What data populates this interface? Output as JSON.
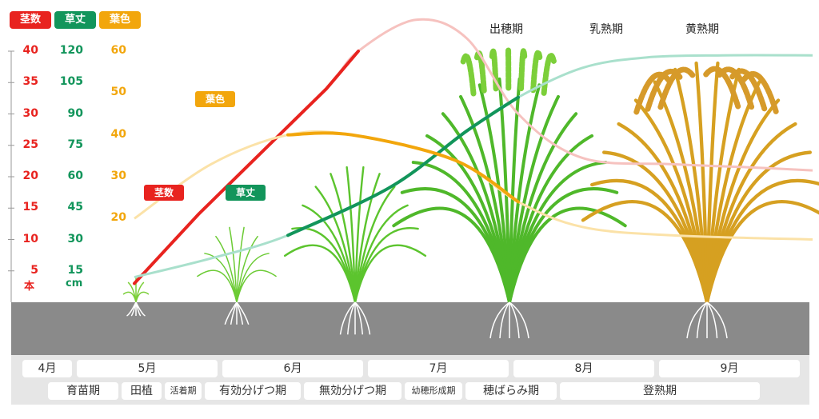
{
  "legend": {
    "tillers": {
      "label": "茎数",
      "color": "#e8231f"
    },
    "height": {
      "label": "草丈",
      "color": "#12955b"
    },
    "leaf_color": {
      "label": "葉色",
      "color": "#f2a60c"
    }
  },
  "stages": {
    "heading": "出穂期",
    "milk": "乳熟期",
    "yellow": "黄熟期"
  },
  "axes": {
    "tillers": {
      "ticks": [
        "5",
        "10",
        "15",
        "20",
        "25",
        "30",
        "35",
        "40"
      ],
      "unit": "本"
    },
    "height": {
      "ticks": [
        "15",
        "30",
        "45",
        "60",
        "75",
        "90",
        "105",
        "120"
      ],
      "unit": "cm"
    },
    "leaf_color": {
      "ticks": [
        "20",
        "30",
        "40",
        "50",
        "60"
      ]
    }
  },
  "callouts": {
    "leaf_color": "葉色",
    "tillers": "茎数",
    "height": "草丈"
  },
  "timeline": {
    "months": [
      "4月",
      "5月",
      "6月",
      "7月",
      "8月",
      "9月"
    ],
    "phases": [
      "育苗期",
      "田植",
      "活着期",
      "有効分げつ期",
      "無効分げつ期",
      "幼穂形成期",
      "穂ばらみ期",
      "登熟期"
    ]
  },
  "chart_data": {
    "type": "line",
    "series": [
      {
        "name": "茎数",
        "unit": "本",
        "color": "#e8231f",
        "points": [
          [
            0,
            3
          ],
          [
            0.5,
            14
          ],
          [
            1,
            24
          ],
          [
            1.5,
            34
          ],
          [
            1.75,
            40
          ],
          [
            2.2,
            45
          ],
          [
            2.6,
            42
          ],
          [
            3.0,
            30
          ],
          [
            3.5,
            23
          ],
          [
            4.2,
            22
          ],
          [
            4.8,
            21.5
          ],
          [
            5.3,
            21
          ]
        ]
      },
      {
        "name": "草丈",
        "unit": "cm",
        "color": "#12955b",
        "points": [
          [
            0,
            12
          ],
          [
            0.6,
            21
          ],
          [
            1.2,
            32
          ],
          [
            2,
            55
          ],
          [
            2.6,
            82
          ],
          [
            3.0,
            98
          ],
          [
            3.5,
            112
          ],
          [
            4.0,
            117
          ],
          [
            4.6,
            118
          ],
          [
            5.3,
            118
          ]
        ]
      },
      {
        "name": "葉色",
        "color": "#f2a60c",
        "points": [
          [
            0,
            20
          ],
          [
            0.6,
            33
          ],
          [
            1.2,
            40
          ],
          [
            1.7,
            40
          ],
          [
            2.5,
            34
          ],
          [
            3.0,
            24
          ],
          [
            3.5,
            18
          ],
          [
            4.2,
            16
          ],
          [
            5.3,
            15
          ]
        ]
      }
    ],
    "axes_ranges": {
      "tillers": [
        0,
        40
      ],
      "height": [
        0,
        120
      ],
      "leaf_color": [
        0,
        60
      ]
    },
    "grid": false,
    "legend": "top-left"
  }
}
